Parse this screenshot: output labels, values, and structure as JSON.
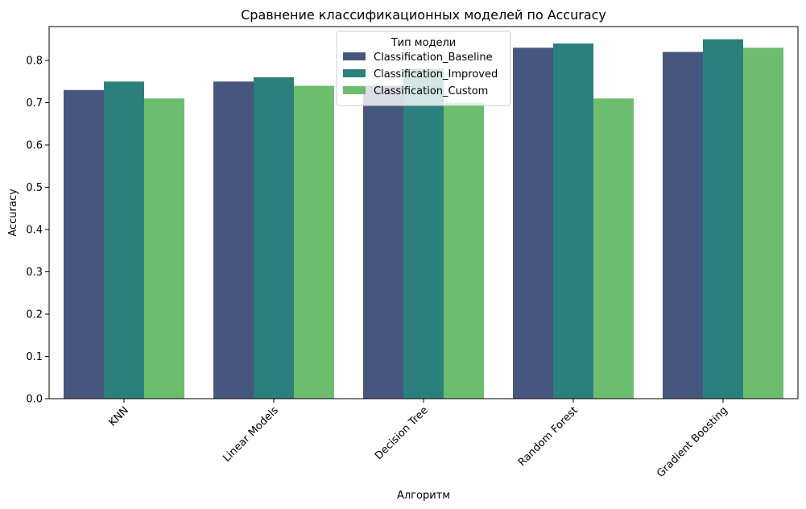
{
  "chart_data": {
    "type": "bar",
    "title": "Сравнение классификационных моделей по Accuracy",
    "xlabel": "Алгоритм",
    "ylabel": "Accuracy",
    "categories": [
      "KNN",
      "Linear Models",
      "Decision Tree",
      "Random Forest",
      "Gradient Boosting"
    ],
    "series": [
      {
        "name": "Classification_Baseline",
        "color": "#46567f",
        "values": [
          0.73,
          0.75,
          0.74,
          0.83,
          0.82
        ]
      },
      {
        "name": "Classification_Improved",
        "color": "#2b807d",
        "values": [
          0.75,
          0.76,
          0.78,
          0.84,
          0.85
        ]
      },
      {
        "name": "Classification_Custom",
        "color": "#6dbd6e",
        "values": [
          0.71,
          0.74,
          0.7,
          0.71,
          0.83
        ]
      }
    ],
    "ylim": [
      0,
      0.88
    ],
    "yticks": [
      0.0,
      0.1,
      0.2,
      0.3,
      0.4,
      0.5,
      0.6,
      0.7,
      0.8
    ],
    "ytick_labels": [
      "0.0",
      "0.1",
      "0.2",
      "0.3",
      "0.4",
      "0.5",
      "0.6",
      "0.7",
      "0.8"
    ],
    "legend": {
      "title": "Тип модели",
      "placement": "top-center"
    },
    "grid": false
  }
}
